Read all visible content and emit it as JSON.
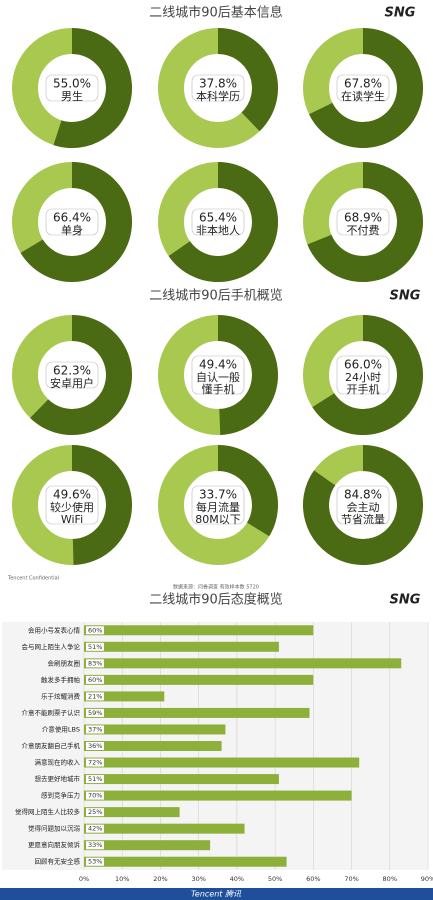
{
  "headers": [
    {
      "title": "二线城市90后基本信息",
      "logo": "SNG"
    },
    {
      "title": "二线城市90后手机概览",
      "logo": "SNG"
    },
    {
      "title": "二线城市90后态度概览",
      "logo": "SNG"
    }
  ],
  "notes": {
    "confidential": "Tencent Confidential",
    "source": "数据来源：问卷调查 有效样本数 5720",
    "footer": "Tencent 腾讯"
  },
  "chart_data": [
    {
      "type": "donut",
      "values": [
        55.0
      ],
      "value_labels": [
        "55.0%"
      ],
      "label": [
        "男生"
      ]
    },
    {
      "type": "donut",
      "values": [
        37.8
      ],
      "value_labels": [
        "37.8%"
      ],
      "label": [
        "本科学历"
      ]
    },
    {
      "type": "donut",
      "values": [
        67.8
      ],
      "value_labels": [
        "67.8%"
      ],
      "label": [
        "在读学生"
      ]
    },
    {
      "type": "donut",
      "values": [
        66.4
      ],
      "value_labels": [
        "66.4%"
      ],
      "label": [
        "单身"
      ]
    },
    {
      "type": "donut",
      "values": [
        65.4
      ],
      "value_labels": [
        "65.4%"
      ],
      "label": [
        "非本地人"
      ]
    },
    {
      "type": "donut",
      "values": [
        68.9
      ],
      "value_labels": [
        "68.9%"
      ],
      "label": [
        "不付费"
      ]
    },
    {
      "type": "donut",
      "values": [
        62.3
      ],
      "value_labels": [
        "62.3%"
      ],
      "label": [
        "安卓用户"
      ]
    },
    {
      "type": "donut",
      "values": [
        49.4
      ],
      "value_labels": [
        "49.4%"
      ],
      "label": [
        "自认一般",
        "懂手机"
      ]
    },
    {
      "type": "donut",
      "values": [
        66.0
      ],
      "value_labels": [
        "66.0%"
      ],
      "label": [
        "24小时",
        "开手机"
      ]
    },
    {
      "type": "donut",
      "values": [
        49.6
      ],
      "value_labels": [
        "49.6%"
      ],
      "label": [
        "较少使用",
        "WiFi"
      ]
    },
    {
      "type": "donut",
      "values": [
        33.7
      ],
      "value_labels": [
        "33.7%"
      ],
      "label": [
        "每月流量",
        "80M以下"
      ]
    },
    {
      "type": "donut",
      "values": [
        84.8
      ],
      "value_labels": [
        "84.8%"
      ],
      "label": [
        "会主动",
        "节省流量"
      ]
    },
    {
      "type": "hbar",
      "color": "#8db03a",
      "categories": [
        "会用小号发表心情",
        "会与网上陌生人争论",
        "会刷朋友圈",
        "触发多手拥帕",
        "乐于炫耀消费",
        "介意不能刷票子认识",
        "介意使用LBS",
        "介意朋友翻自己手机",
        "满意现在的收入",
        "想去更好地城市",
        "感到竞争压力",
        "觉得网上陌生人比较多",
        "觉得问题加以沉溺",
        "更愿意向朋友倾诉",
        "回顾有无安全感"
      ],
      "values": [
        60,
        51,
        83,
        60,
        21,
        59,
        37,
        36,
        72,
        51,
        70,
        25,
        42,
        33,
        53
      ],
      "value_labels": [
        "60%",
        "51%",
        "83%",
        "60%",
        "21%",
        "59%",
        "37%",
        "36%",
        "72%",
        "51%",
        "70%",
        "25%",
        "42%",
        "33%",
        "53%"
      ],
      "xlim": [
        0,
        90
      ],
      "xticks": [
        {
          "value": 0,
          "label": "0%"
        },
        {
          "value": 10,
          "label": "10%"
        },
        {
          "value": 20,
          "label": "20%"
        },
        {
          "value": 30,
          "label": "30%"
        },
        {
          "value": 40,
          "label": "40%"
        },
        {
          "value": 50,
          "label": "50%"
        },
        {
          "value": 60,
          "label": "60%"
        },
        {
          "value": 70,
          "label": "70%"
        },
        {
          "value": 80,
          "label": "80%"
        },
        {
          "value": 90,
          "label": "90%"
        }
      ],
      "grid": true
    }
  ]
}
